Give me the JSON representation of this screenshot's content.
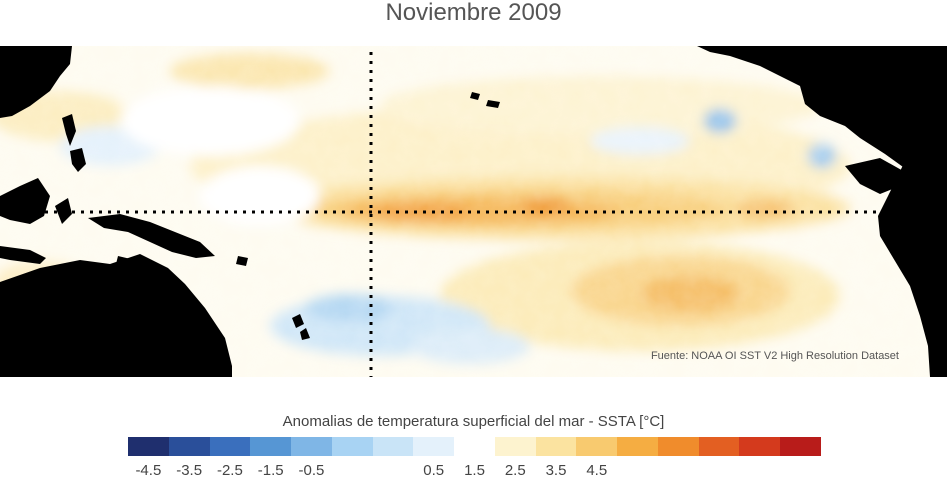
{
  "title": "Noviembre 2009",
  "source": "Fuente: NOAA OI SST V2 High Resolution Dataset",
  "colorbar": {
    "label": "Anomalias de temperatura superficial del mar - SSTA  [°C]",
    "colors": [
      "#1f2f6e",
      "#2a4f9a",
      "#3a6fbd",
      "#5696d4",
      "#7fb6e6",
      "#a8d3f3",
      "#c9e4f7",
      "#e4f1fb",
      "#ffffff",
      "#fdf3cf",
      "#fbe3a0",
      "#f8ca6f",
      "#f5ad42",
      "#f08c2c",
      "#e35f22",
      "#d43a1d",
      "#b81c1a"
    ],
    "ticks": [
      "-4.5",
      "-3.5",
      "-2.5",
      "-1.5",
      "-0.5",
      "0.5",
      "1.5",
      "2.5",
      "3.5",
      "4.5"
    ]
  },
  "map": {
    "land_color": "#000000",
    "reference_lines": [
      "date-line",
      "equator"
    ]
  }
}
